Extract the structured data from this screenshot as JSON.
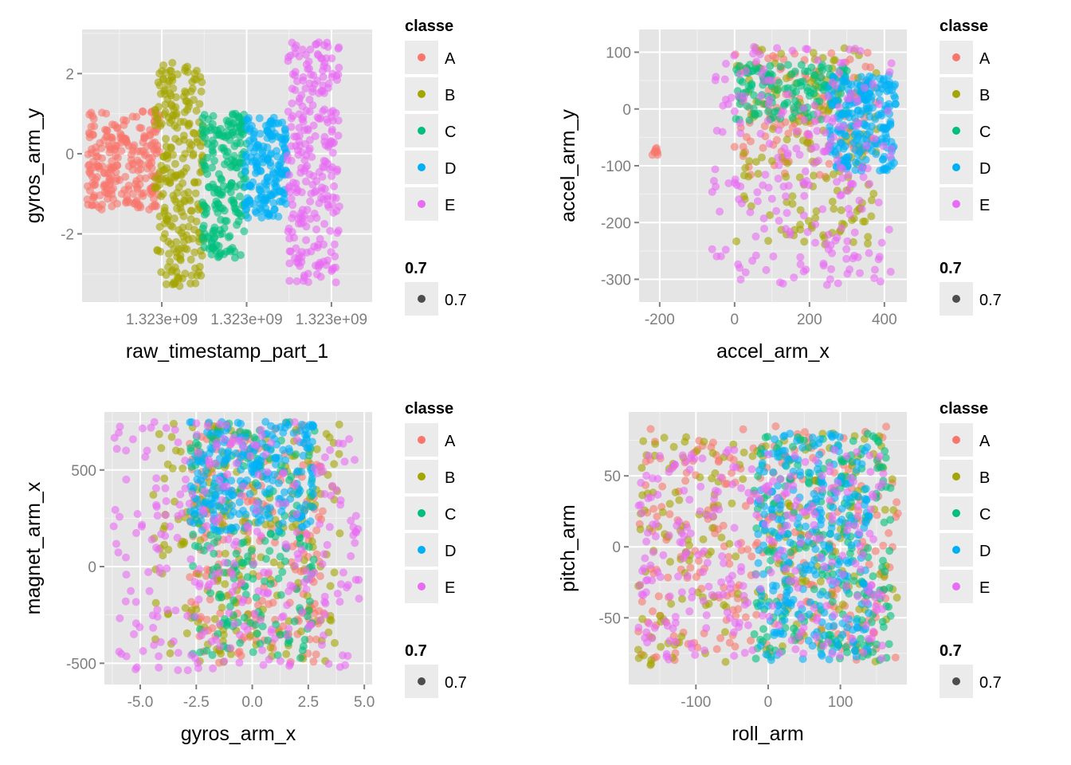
{
  "colors": {
    "panel_bg": "#e5e5e5",
    "grid_major": "#ffffff",
    "grid_minor": "#f2f2f2",
    "legend_key_bg": "#ebebeb",
    "size_key_point": "#4d4d4d"
  },
  "legend": {
    "color_title": "classe",
    "size_title": "0.7",
    "size_label": "0.7",
    "classes": [
      {
        "label": "A",
        "color": "#F8766D"
      },
      {
        "label": "B",
        "color": "#A3A500"
      },
      {
        "label": "C",
        "color": "#00BF7D"
      },
      {
        "label": "D",
        "color": "#00B0F6"
      },
      {
        "label": "E",
        "color": "#E76BF3"
      }
    ]
  },
  "chart_data": [
    {
      "type": "scatter",
      "xlabel": "raw_timestamp_part_1",
      "ylabel": "gyros_arm_y",
      "x_ticks": [
        {
          "value": 1,
          "label": "1.323e+09"
        },
        {
          "value": 2,
          "label": "1.323e+09"
        },
        {
          "value": 3,
          "label": "1.323e+09"
        }
      ],
      "y_ticks": [
        {
          "value": -2,
          "label": "-2"
        },
        {
          "value": 0,
          "label": "0"
        },
        {
          "value": 2,
          "label": "2"
        }
      ],
      "xlim": [
        0.06,
        3.48
      ],
      "ylim": [
        -3.7,
        3.1
      ],
      "grid": true,
      "legend_position": "right",
      "series": [
        {
          "name": "A",
          "clusters": [
            {
              "x": [
                0.12,
                0.98
              ],
              "y": [
                -1.4,
                1.1
              ],
              "n": 240
            }
          ]
        },
        {
          "name": "B",
          "clusters": [
            {
              "x": [
                0.92,
                1.5
              ],
              "y": [
                -3.3,
                2.3
              ],
              "n": 260
            }
          ]
        },
        {
          "name": "C",
          "clusters": [
            {
              "x": [
                1.47,
                2.0
              ],
              "y": [
                -2.6,
                1.0
              ],
              "n": 200
            }
          ]
        },
        {
          "name": "D",
          "clusters": [
            {
              "x": [
                1.98,
                2.48
              ],
              "y": [
                -1.6,
                0.9
              ],
              "n": 180
            }
          ]
        },
        {
          "name": "E",
          "clusters": [
            {
              "x": [
                2.48,
                3.1
              ],
              "y": [
                -3.3,
                2.8
              ],
              "n": 260
            }
          ]
        }
      ]
    },
    {
      "type": "scatter",
      "xlabel": "accel_arm_x",
      "ylabel": "accel_arm_y",
      "x_ticks": [
        {
          "value": -200,
          "label": "-200"
        },
        {
          "value": 0,
          "label": "0"
        },
        {
          "value": 200,
          "label": "200"
        },
        {
          "value": 400,
          "label": "400"
        }
      ],
      "y_ticks": [
        {
          "value": -300,
          "label": "-300"
        },
        {
          "value": -200,
          "label": "-200"
        },
        {
          "value": -100,
          "label": "-100"
        },
        {
          "value": 0,
          "label": "0"
        },
        {
          "value": 100,
          "label": "100"
        }
      ],
      "xlim": [
        -255,
        460
      ],
      "ylim": [
        -340,
        140
      ],
      "grid": true,
      "legend_position": "right",
      "series": [
        {
          "name": "A",
          "clusters": [
            {
              "x": [
                -220,
                -205
              ],
              "y": [
                -82,
                -68
              ],
              "n": 8
            },
            {
              "x": [
                0,
                380
              ],
              "y": [
                -120,
                100
              ],
              "n": 110
            }
          ]
        },
        {
          "name": "B",
          "clusters": [
            {
              "x": [
                0,
                380
              ],
              "y": [
                -240,
                110
              ],
              "n": 160
            }
          ]
        },
        {
          "name": "C",
          "clusters": [
            {
              "x": [
                0,
                300
              ],
              "y": [
                -20,
                80
              ],
              "n": 140
            }
          ]
        },
        {
          "name": "D",
          "clusters": [
            {
              "x": [
                250,
                430
              ],
              "y": [
                -110,
                60
              ],
              "n": 220
            }
          ]
        },
        {
          "name": "E",
          "clusters": [
            {
              "x": [
                -60,
                420
              ],
              "y": [
                -310,
                110
              ],
              "n": 220
            }
          ]
        }
      ]
    },
    {
      "type": "scatter",
      "xlabel": "gyros_arm_x",
      "ylabel": "magnet_arm_x",
      "x_ticks": [
        {
          "value": -5,
          "label": "-5.0"
        },
        {
          "value": -2.5,
          "label": "-2.5"
        },
        {
          "value": 0,
          "label": "0.0"
        },
        {
          "value": 2.5,
          "label": "2.5"
        },
        {
          "value": 5,
          "label": "5.0"
        }
      ],
      "y_ticks": [
        {
          "value": -500,
          "label": "-500"
        },
        {
          "value": 0,
          "label": "0"
        },
        {
          "value": 500,
          "label": "500"
        }
      ],
      "xlim": [
        -6.6,
        5.35
      ],
      "ylim": [
        -610,
        800
      ],
      "grid": true,
      "legend_position": "right",
      "series": [
        {
          "name": "A",
          "clusters": [
            {
              "x": [
                -2.8,
                3.2
              ],
              "y": [
                -500,
                750
              ],
              "n": 200
            }
          ]
        },
        {
          "name": "B",
          "clusters": [
            {
              "x": [
                -4.5,
                4.0
              ],
              "y": [
                -500,
                750
              ],
              "n": 220
            }
          ]
        },
        {
          "name": "C",
          "clusters": [
            {
              "x": [
                -2.8,
                2.8
              ],
              "y": [
                -480,
                750
              ],
              "n": 200
            }
          ]
        },
        {
          "name": "D",
          "clusters": [
            {
              "x": [
                -2.8,
                2.8
              ],
              "y": [
                180,
                750
              ],
              "n": 240
            }
          ]
        },
        {
          "name": "E",
          "clusters": [
            {
              "x": [
                -6.2,
                4.8
              ],
              "y": [
                -540,
                750
              ],
              "n": 280
            }
          ]
        }
      ]
    },
    {
      "type": "scatter",
      "xlabel": "roll_arm",
      "ylabel": "pitch_arm",
      "x_ticks": [
        {
          "value": -100,
          "label": "-100"
        },
        {
          "value": 0,
          "label": "0"
        },
        {
          "value": 100,
          "label": "100"
        }
      ],
      "y_ticks": [
        {
          "value": -50,
          "label": "-50"
        },
        {
          "value": 0,
          "label": "0"
        },
        {
          "value": 50,
          "label": "50"
        }
      ],
      "xlim": [
        -193,
        192
      ],
      "ylim": [
        -97,
        95
      ],
      "grid": true,
      "legend_position": "right",
      "series": [
        {
          "name": "A",
          "clusters": [
            {
              "x": [
                -180,
                180
              ],
              "y": [
                -80,
                85
              ],
              "n": 260
            }
          ]
        },
        {
          "name": "B",
          "clusters": [
            {
              "x": [
                -180,
                180
              ],
              "y": [
                -85,
                80
              ],
              "n": 200
            }
          ]
        },
        {
          "name": "C",
          "clusters": [
            {
              "x": [
                -20,
                170
              ],
              "y": [
                -80,
                80
              ],
              "n": 240
            }
          ]
        },
        {
          "name": "D",
          "clusters": [
            {
              "x": [
                -15,
                140
              ],
              "y": [
                -80,
                80
              ],
              "n": 260
            }
          ]
        },
        {
          "name": "E",
          "clusters": [
            {
              "x": [
                -180,
                160
              ],
              "y": [
                -80,
                70
              ],
              "n": 280
            }
          ]
        }
      ]
    }
  ]
}
